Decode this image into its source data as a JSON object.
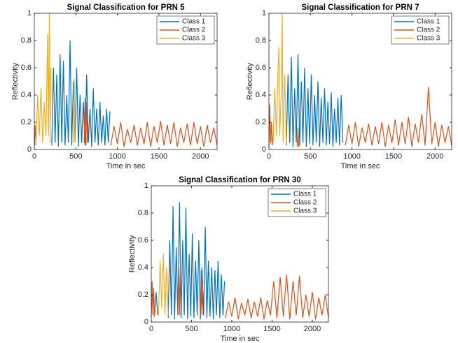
{
  "chart_data": [
    {
      "type": "line",
      "title": "Signal Classification for PRN 5",
      "xlabel": "Time in sec",
      "ylabel": "Reflectivity",
      "xlim": [
        0,
        2200
      ],
      "ylim": [
        0,
        1
      ],
      "xticks": [
        0,
        500,
        1000,
        1500,
        2000
      ],
      "yticks": [
        0,
        0.2,
        0.4,
        0.6,
        0.8,
        1
      ],
      "series": [
        {
          "name": "Class 1",
          "color": "#0072BD",
          "x": [
            210,
            230,
            250,
            270,
            290,
            310,
            330,
            350,
            370,
            390,
            410,
            430,
            450,
            470,
            490,
            510,
            530,
            550,
            570,
            590,
            610,
            630,
            650,
            670,
            690,
            710,
            730,
            750,
            770,
            790,
            810,
            830,
            850,
            870,
            890,
            910
          ],
          "values": [
            0.03,
            0.6,
            0.05,
            0.55,
            0.02,
            0.7,
            0.05,
            0.65,
            0.03,
            0.4,
            0.05,
            0.8,
            0.03,
            0.5,
            0.05,
            0.6,
            0.02,
            0.4,
            0.05,
            0.35,
            0.03,
            0.55,
            0.05,
            0.3,
            0.02,
            0.45,
            0.05,
            0.3,
            0.03,
            0.35,
            0.05,
            0.25,
            0.03,
            0.3,
            0.05,
            0.28
          ]
        },
        {
          "name": "Class 2",
          "color": "#D95319",
          "x": [
            0,
            10,
            20,
            300,
            600,
            610,
            620,
            630,
            640,
            780,
            920,
            960,
            1000,
            1040,
            1080,
            1120,
            1160,
            1200,
            1240,
            1280,
            1320,
            1360,
            1400,
            1440,
            1480,
            1520,
            1560,
            1600,
            1640,
            1680,
            1720,
            1760,
            1800,
            1840,
            1880,
            1920,
            1960,
            2000,
            2040,
            2080,
            2120,
            2160,
            2200
          ],
          "values": [
            0.02,
            0.18,
            0.03,
            null,
            0.05,
            0.38,
            0.03,
            0.35,
            0.05,
            null,
            0.03,
            0.17,
            0.04,
            0.2,
            0.02,
            0.15,
            0.05,
            0.18,
            0.03,
            0.16,
            0.04,
            0.2,
            0.02,
            0.17,
            0.05,
            0.21,
            0.03,
            0.18,
            0.04,
            0.2,
            0.02,
            0.16,
            0.05,
            0.19,
            0.03,
            0.2,
            0.04,
            0.17,
            0.02,
            0.18,
            0.05,
            0.16,
            0.03
          ]
        },
        {
          "name": "Class 3",
          "color": "#EDB120",
          "x": [
            20,
            40,
            60,
            80,
            100,
            120,
            140,
            160,
            170,
            180,
            190,
            200,
            300,
            470,
            480,
            490
          ],
          "values": [
            0.05,
            0.4,
            0.1,
            0.45,
            0.05,
            0.35,
            0.1,
            0.85,
            0.1,
            1.0,
            0.05,
            0.6,
            null,
            0.05,
            0.52,
            0.05
          ]
        }
      ]
    },
    {
      "type": "line",
      "title": "Signal Classification for PRN 7",
      "xlabel": "Time in sec",
      "ylabel": "Reflectivity",
      "xlim": [
        0,
        2200
      ],
      "ylim": [
        0,
        1
      ],
      "xticks": [
        0,
        500,
        1000,
        1500,
        2000
      ],
      "yticks": [
        0,
        0.2,
        0.4,
        0.6,
        0.8,
        1
      ],
      "series": [
        {
          "name": "Class 1",
          "color": "#0072BD",
          "x": [
            210,
            230,
            250,
            270,
            290,
            310,
            330,
            350,
            370,
            390,
            410,
            430,
            450,
            470,
            490,
            510,
            530,
            550,
            570,
            590,
            610,
            630,
            650,
            670,
            690,
            710,
            730,
            750,
            770,
            790,
            810,
            830,
            850,
            870,
            890
          ],
          "values": [
            0.03,
            0.55,
            0.05,
            0.68,
            0.02,
            0.45,
            0.05,
            0.7,
            0.03,
            0.5,
            0.05,
            0.6,
            0.02,
            0.45,
            0.04,
            0.55,
            0.03,
            0.4,
            0.05,
            0.5,
            0.02,
            0.38,
            0.05,
            0.45,
            0.03,
            0.35,
            0.04,
            0.42,
            0.02,
            0.3,
            0.05,
            0.38,
            0.03,
            0.4,
            0.05
          ]
        },
        {
          "name": "Class 2",
          "color": "#D95319",
          "x": [
            0,
            10,
            20,
            30,
            40,
            50,
            200,
            340,
            350,
            360,
            700,
            920,
            960,
            1000,
            1040,
            1080,
            1120,
            1160,
            1200,
            1240,
            1280,
            1320,
            1360,
            1400,
            1440,
            1480,
            1520,
            1560,
            1600,
            1640,
            1680,
            1720,
            1760,
            1800,
            1840,
            1880,
            1920,
            1960,
            2000,
            2040,
            2080,
            2120,
            2160,
            2200
          ],
          "values": [
            0.02,
            0.33,
            0.05,
            0.2,
            0.03,
            0.1,
            null,
            0.02,
            0.16,
            0.02,
            null,
            0.03,
            0.18,
            0.04,
            0.2,
            0.02,
            0.16,
            0.05,
            0.19,
            0.03,
            0.17,
            0.04,
            0.2,
            0.02,
            0.18,
            0.05,
            0.22,
            0.03,
            0.2,
            0.04,
            0.24,
            0.02,
            0.19,
            0.05,
            0.26,
            0.03,
            0.46,
            0.04,
            0.2,
            0.02,
            0.18,
            0.05,
            0.17,
            0.03
          ]
        },
        {
          "name": "Class 3",
          "color": "#EDB120",
          "x": [
            50,
            70,
            90,
            110,
            120,
            130,
            150,
            160,
            170,
            190,
            210
          ],
          "values": [
            0.05,
            0.45,
            0.1,
            0.6,
            0.75,
            0.1,
            0.45,
            1.0,
            0.05,
            0.55,
            0.05
          ]
        }
      ]
    },
    {
      "type": "line",
      "title": "Signal Classification for PRN 30",
      "xlabel": "Time in sec",
      "ylabel": "Reflectivity",
      "xlim": [
        0,
        2200
      ],
      "ylim": [
        0,
        1
      ],
      "xticks": [
        0,
        500,
        1000,
        1500,
        2000
      ],
      "yticks": [
        0,
        0.2,
        0.4,
        0.6,
        0.8,
        1
      ],
      "series": [
        {
          "name": "Class 1",
          "color": "#0072BD",
          "x": [
            40,
            60,
            80,
            85,
            210,
            230,
            250,
            270,
            290,
            310,
            330,
            350,
            370,
            390,
            410,
            430,
            450,
            470,
            490,
            510,
            530,
            550,
            570,
            590,
            610,
            630,
            650,
            670,
            690,
            710,
            730,
            750,
            770,
            790,
            810,
            830,
            850,
            870,
            890,
            910
          ],
          "values": [
            0.05,
            0.22,
            0.05,
            null,
            0.03,
            0.6,
            0.05,
            0.85,
            0.02,
            0.55,
            0.05,
            0.88,
            0.03,
            0.6,
            0.05,
            0.84,
            0.02,
            0.5,
            0.04,
            0.65,
            0.03,
            0.45,
            0.05,
            0.6,
            0.02,
            0.4,
            0.05,
            0.7,
            0.03,
            0.45,
            0.04,
            0.4,
            0.02,
            0.38,
            0.05,
            0.45,
            0.03,
            0.35,
            0.05,
            0.3
          ]
        },
        {
          "name": "Class 2",
          "color": "#D95319",
          "x": [
            0,
            10,
            20,
            30,
            40,
            200,
            330,
            340,
            350,
            360,
            500,
            610,
            620,
            630,
            640,
            780,
            920,
            960,
            1000,
            1040,
            1080,
            1120,
            1160,
            1200,
            1240,
            1280,
            1320,
            1360,
            1400,
            1440,
            1480,
            1520,
            1560,
            1600,
            1640,
            1680,
            1720,
            1760,
            1800,
            1840,
            1880,
            1920,
            1960,
            2000,
            2040,
            2080,
            2120,
            2160,
            2200
          ],
          "values": [
            0.03,
            0.3,
            0.05,
            0.25,
            0.04,
            null,
            0.05,
            0.42,
            0.05,
            0.4,
            null,
            0.05,
            0.38,
            0.05,
            0.3,
            null,
            0.03,
            0.15,
            0.04,
            0.18,
            0.02,
            0.14,
            0.05,
            0.17,
            0.03,
            0.15,
            0.04,
            0.18,
            0.02,
            0.16,
            0.05,
            0.3,
            0.03,
            0.33,
            0.04,
            0.35,
            0.02,
            0.3,
            0.05,
            0.34,
            0.03,
            0.2,
            0.04,
            0.22,
            0.02,
            0.18,
            0.05,
            0.2,
            0.03
          ]
        },
        {
          "name": "Class 3",
          "color": "#EDB120",
          "x": [
            90,
            110,
            130,
            150,
            170,
            190,
            210
          ],
          "values": [
            0.05,
            0.45,
            0.1,
            0.5,
            0.05,
            0.4,
            0.05
          ]
        }
      ]
    }
  ]
}
